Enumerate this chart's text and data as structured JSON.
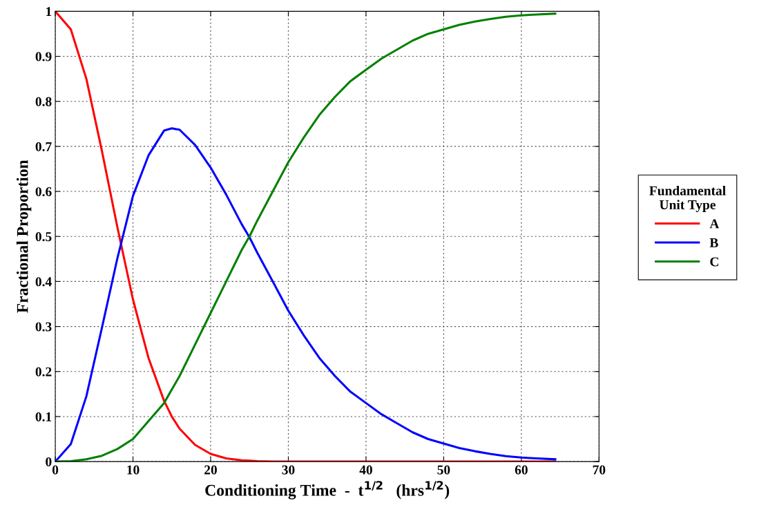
{
  "chart_data": {
    "type": "line",
    "xlabel": "Conditioning Time  -  t$^{1/2}$   (hrs$^{1/2}$)",
    "ylabel": "Fractional Proportion",
    "legend_title": "Fundamental\nUnit Type",
    "x": [
      0,
      2,
      4,
      6,
      8,
      10,
      12,
      14,
      15,
      16,
      18,
      20,
      22,
      24,
      25,
      26,
      28,
      30,
      32,
      34,
      36,
      38,
      40,
      42,
      44,
      46,
      48,
      50,
      52,
      54,
      56,
      58,
      60,
      62,
      64.5
    ],
    "series": [
      {
        "name": "A",
        "color": "#ff0000",
        "values": [
          1,
          0.96,
          0.85,
          0.69,
          0.52,
          0.36,
          0.23,
          0.135,
          0.1,
          0.073,
          0.037,
          0.017,
          0.007,
          0.003,
          0.002,
          0.001,
          0,
          0,
          0,
          0,
          0,
          0,
          0,
          0,
          0,
          0,
          0,
          0,
          0,
          0,
          0,
          0,
          0,
          0,
          0
        ]
      },
      {
        "name": "B",
        "color": "#0000ff",
        "values": [
          0,
          0.039,
          0.145,
          0.297,
          0.452,
          0.59,
          0.68,
          0.735,
          0.74,
          0.737,
          0.703,
          0.653,
          0.593,
          0.527,
          0.498,
          0.464,
          0.4,
          0.335,
          0.28,
          0.23,
          0.19,
          0.155,
          0.13,
          0.105,
          0.085,
          0.065,
          0.05,
          0.04,
          0.03,
          0.023,
          0.017,
          0.012,
          0.009,
          0.007,
          0.005
        ]
      },
      {
        "name": "C",
        "color": "#008000",
        "values": [
          0,
          0.001,
          0.005,
          0.013,
          0.028,
          0.05,
          0.09,
          0.13,
          0.16,
          0.19,
          0.26,
          0.33,
          0.4,
          0.47,
          0.5,
          0.535,
          0.6,
          0.665,
          0.72,
          0.77,
          0.81,
          0.845,
          0.87,
          0.895,
          0.915,
          0.935,
          0.95,
          0.96,
          0.97,
          0.977,
          0.983,
          0.988,
          0.991,
          0.993,
          0.995
        ]
      }
    ],
    "xlim": [
      0,
      70
    ],
    "xticks": [
      0,
      10,
      20,
      30,
      40,
      50,
      60,
      70
    ],
    "ylim": [
      0,
      1
    ],
    "yticks": [
      0,
      0.1,
      0.2,
      0.3,
      0.4,
      0.5,
      0.6,
      0.7,
      0.8,
      0.9,
      1
    ],
    "grid": true,
    "legend": "right",
    "line_style": "solid",
    "marker": "none"
  }
}
